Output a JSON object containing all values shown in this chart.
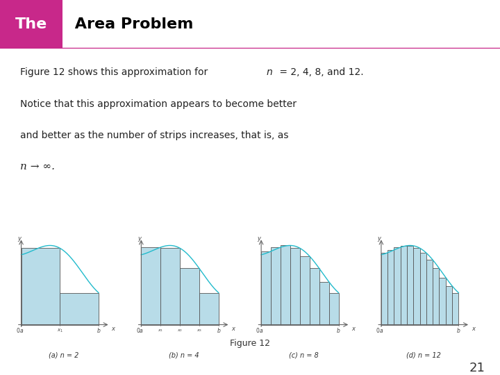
{
  "title_bg_color": "#d0d0d0",
  "title_pink_box_color": "#c8288a",
  "title_pink_line_color": "#c8288a",
  "body_bg_color": "#ffffff",
  "body_text_line1": "Figure 12 shows this approximation for ",
  "body_text_line1_italic": "n",
  "body_text_line1_rest": " = 2, 4, 8, and 12.",
  "body_text_line2": "Notice that this approximation appears to become better",
  "body_text_line3": "and better as the number of strips increases, that is, as",
  "fig12_caption": "Figure 12",
  "page_number": "21",
  "subplot_labels": [
    "(a) n = 2",
    "(b) n = 4",
    "(c) n = 8",
    "(d) n = 12"
  ],
  "bar_fill_color": "#b8dce8",
  "bar_edge_color": "#555555",
  "curve_color": "#22bbcc",
  "axis_color": "#666666",
  "n_values": [
    2,
    4,
    8,
    12
  ]
}
